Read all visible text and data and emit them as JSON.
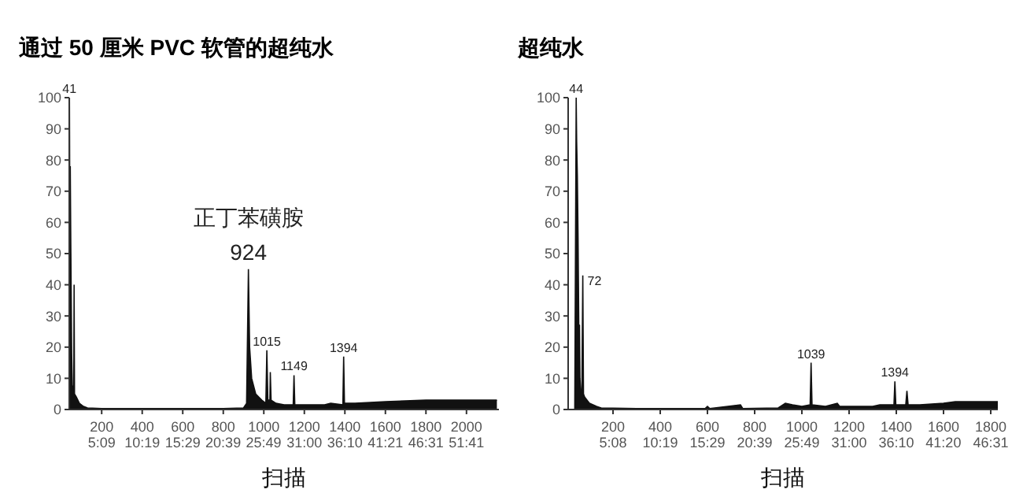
{
  "chart_data": [
    {
      "type": "area",
      "title": "通过 50 厘米 PVC 软管的超纯水",
      "xlabel": "扫描",
      "color": "#111111",
      "grid": false,
      "legend": false,
      "x": [
        40,
        41,
        43,
        45,
        48,
        52,
        55,
        60,
        62,
        64,
        66,
        75,
        90,
        110,
        130,
        200,
        400,
        600,
        800,
        900,
        915,
        924,
        930,
        940,
        960,
        990,
        1010,
        1015,
        1020,
        1030,
        1032,
        1036,
        1060,
        1100,
        1145,
        1149,
        1153,
        1200,
        1300,
        1330,
        1390,
        1394,
        1398,
        1450,
        1600,
        1800,
        2000,
        2150
      ],
      "values": [
        0,
        100,
        60,
        78,
        50,
        18,
        8,
        5,
        4,
        40,
        5,
        4,
        2,
        1,
        0.5,
        0.3,
        0.3,
        0.3,
        0.3,
        0.5,
        2,
        45,
        20,
        10,
        5,
        3,
        2,
        19,
        3,
        3,
        12,
        3,
        2,
        1.5,
        1.5,
        11,
        1.5,
        1.5,
        1.5,
        2,
        1.5,
        17,
        2,
        2,
        2.5,
        3,
        3,
        3
      ],
      "xlim": [
        40,
        2160
      ],
      "ylim": [
        0,
        100
      ],
      "yticks": [
        0,
        10,
        20,
        30,
        40,
        50,
        60,
        70,
        80,
        90,
        100
      ],
      "xticks": [
        200,
        400,
        600,
        800,
        1000,
        1200,
        1400,
        1600,
        1800,
        2000
      ],
      "x2lim": [
        1.01,
        55.82
      ],
      "x2ticks": [
        {
          "value": 5.15,
          "label": "5:09"
        },
        {
          "value": 10.3167,
          "label": "10:19"
        },
        {
          "value": 15.4833,
          "label": "15:29"
        },
        {
          "value": 20.65,
          "label": "20:39"
        },
        {
          "value": 25.8167,
          "label": "25:49"
        },
        {
          "value": 31,
          "label": "31:00"
        },
        {
          "value": 36.1667,
          "label": "36:10"
        },
        {
          "value": 41.35,
          "label": "41:21"
        },
        {
          "value": 46.5167,
          "label": "46:31"
        },
        {
          "value": 51.6833,
          "label": "51:41"
        }
      ],
      "annotations": [
        {
          "text": "41",
          "x": 41,
          "y": 100
        },
        {
          "text": "924",
          "x": 924,
          "y": 45
        },
        {
          "text": "正丁苯磺胺",
          "x": 924,
          "y": 45
        },
        {
          "text": "1015",
          "x": 1015,
          "y": 19
        },
        {
          "text": "1149",
          "x": 1149,
          "y": 11
        },
        {
          "text": "1394",
          "x": 1394,
          "y": 17
        }
      ]
    },
    {
      "type": "area",
      "title": "超纯水",
      "xlabel": "扫描",
      "color": "#111111",
      "grid": false,
      "legend": false,
      "x": [
        38,
        44,
        46,
        49,
        52,
        55,
        58,
        60,
        64,
        68,
        72,
        75,
        80,
        100,
        130,
        150,
        300,
        590,
        600,
        610,
        740,
        750,
        900,
        930,
        960,
        1000,
        1035,
        1039,
        1043,
        1100,
        1150,
        1160,
        1200,
        1300,
        1330,
        1390,
        1394,
        1398,
        1440,
        1445,
        1450,
        1500,
        1600,
        1650,
        1830
      ],
      "values": [
        0,
        100,
        86,
        75,
        55,
        27,
        27,
        10,
        5,
        5,
        43,
        5,
        4,
        2,
        1,
        0.5,
        0.3,
        0.3,
        1,
        0.3,
        1.5,
        0.3,
        0.5,
        2,
        1.5,
        1,
        1.5,
        15,
        1.5,
        1,
        2,
        1,
        1,
        1,
        1.5,
        1.5,
        9,
        1.5,
        1.5,
        6,
        1.5,
        1.5,
        2,
        2.5,
        2.5
      ],
      "xlim": [
        10,
        1830
      ],
      "ylim": [
        0,
        100
      ],
      "yticks": [
        0,
        10,
        20,
        30,
        40,
        50,
        60,
        70,
        80,
        90,
        100
      ],
      "xticks": [
        200,
        400,
        600,
        800,
        1000,
        1200,
        1400,
        1600,
        1800
      ],
      "x2lim": [
        0.22,
        47.29
      ],
      "x2ticks": [
        {
          "value": 5.1333,
          "label": "5:08"
        },
        {
          "value": 10.3167,
          "label": "10:19"
        },
        {
          "value": 15.4833,
          "label": "15:29"
        },
        {
          "value": 20.65,
          "label": "20:39"
        },
        {
          "value": 25.8167,
          "label": "25:49"
        },
        {
          "value": 31,
          "label": "31:00"
        },
        {
          "value": 36.1667,
          "label": "36:10"
        },
        {
          "value": 41.3333,
          "label": "41:20"
        },
        {
          "value": 46.5167,
          "label": "46:31"
        }
      ],
      "annotations": [
        {
          "text": "44",
          "x": 44,
          "y": 100
        },
        {
          "text": "72",
          "x": 72,
          "y": 43
        },
        {
          "text": "1039",
          "x": 1039,
          "y": 15
        },
        {
          "text": "1394",
          "x": 1394,
          "y": 9
        }
      ]
    }
  ]
}
